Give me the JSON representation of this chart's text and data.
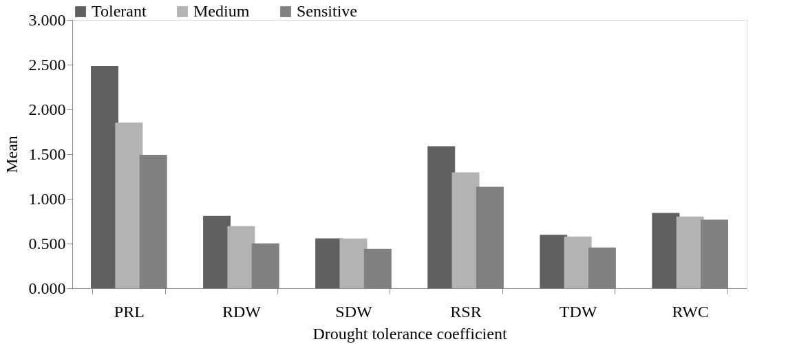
{
  "chart_data": {
    "type": "bar",
    "xlabel": "Drought tolerance coefficient",
    "ylabel": "Mean",
    "categories": [
      "PRL",
      "RDW",
      "SDW",
      "RSR",
      "TDW",
      "RWC"
    ],
    "series": [
      {
        "name": "Tolerant",
        "color": "#606060",
        "values": [
          2.485,
          0.81,
          0.558,
          1.589,
          0.598,
          0.842
        ]
      },
      {
        "name": "Medium",
        "color": "#b3b3b3",
        "values": [
          1.852,
          0.696,
          0.555,
          1.297,
          0.578,
          0.802
        ]
      },
      {
        "name": "Sensitive",
        "color": "#808080",
        "values": [
          1.492,
          0.501,
          0.44,
          1.134,
          0.455,
          0.767
        ]
      }
    ],
    "ylim": [
      0,
      3
    ],
    "yticks": [
      {
        "value": 0,
        "label": "0.000"
      },
      {
        "value": 0.5,
        "label": "0.500"
      },
      {
        "value": 1,
        "label": "1.000"
      },
      {
        "value": 1.5,
        "label": "1.500"
      },
      {
        "value": 2,
        "label": "2.000"
      },
      {
        "value": 2.5,
        "label": "2.500"
      },
      {
        "value": 3,
        "label": "3.000"
      }
    ],
    "grid": false,
    "legend": "top"
  }
}
